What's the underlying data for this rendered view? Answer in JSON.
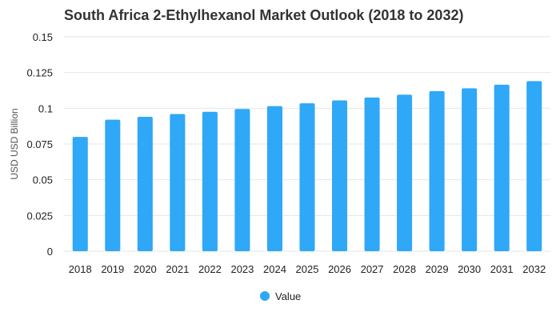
{
  "chart_data": {
    "type": "bar",
    "title": "South Africa 2-Ethylhexanol Market Outlook (2018 to 2032)",
    "xlabel": "",
    "ylabel": "USD USD Billion",
    "ylim": [
      0,
      0.15
    ],
    "yticks": [
      "0",
      "0.025",
      "0.05",
      "0.075",
      "0.1",
      "0.125",
      "0.15"
    ],
    "categories": [
      "2018",
      "2019",
      "2020",
      "2021",
      "2022",
      "2023",
      "2024",
      "2025",
      "2026",
      "2027",
      "2028",
      "2029",
      "2030",
      "2031",
      "2032"
    ],
    "series": [
      {
        "name": "Value",
        "color": "#2fa8f7",
        "values": [
          0.08,
          0.092,
          0.094,
          0.096,
          0.0975,
          0.0995,
          0.1015,
          0.1035,
          0.1055,
          0.1075,
          0.1095,
          0.112,
          0.114,
          0.1165,
          0.119
        ]
      }
    ],
    "grid": true,
    "legend_position": "bottom"
  }
}
